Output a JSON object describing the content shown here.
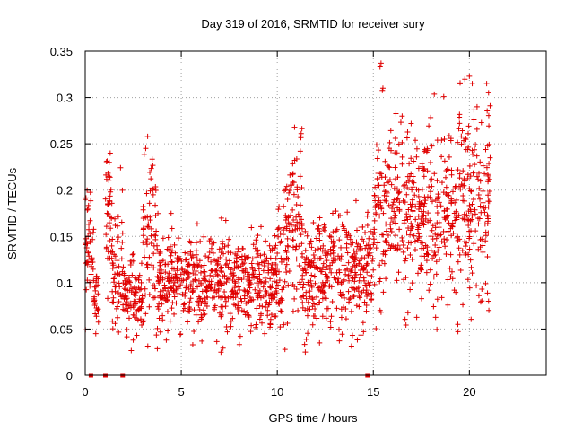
{
  "chart_data": {
    "type": "scatter",
    "title": "Day 319 of 2016, SRMTID for receiver sury",
    "xlabel": "GPS time / hours",
    "ylabel": "SRMTID / TECUs",
    "xlim": [
      0,
      24
    ],
    "ylim": [
      0,
      0.35
    ],
    "xticks": [
      0,
      5,
      10,
      15,
      20
    ],
    "xtick_labels": [
      "0",
      "5",
      "10",
      "15",
      "20"
    ],
    "yticks": [
      0,
      0.05,
      0.1,
      0.15,
      0.2,
      0.25,
      0.3,
      0.35
    ],
    "ytick_labels": [
      "0",
      "0.05",
      "0.1",
      "0.15",
      "0.2",
      "0.25",
      "0.3",
      "0.35"
    ],
    "grid": true,
    "marker": "plus",
    "color": "#e00000",
    "zero_value_hours": [
      0.3,
      1.05,
      1.95,
      14.7
    ],
    "segments": [
      {
        "t0": 0.0,
        "t1": 0.45,
        "mean": 0.14,
        "sd": 0.03
      },
      {
        "t0": 0.45,
        "t1": 0.7,
        "mean": 0.09,
        "sd": 0.015
      },
      {
        "t0": 1.0,
        "t1": 1.4,
        "mean": 0.17,
        "sd": 0.04
      },
      {
        "t0": 1.4,
        "t1": 2.0,
        "mean": 0.11,
        "sd": 0.03
      },
      {
        "t0": 2.0,
        "t1": 3.0,
        "mean": 0.09,
        "sd": 0.02
      },
      {
        "t0": 3.0,
        "t1": 3.8,
        "mean": 0.14,
        "sd": 0.045
      },
      {
        "t0": 3.8,
        "t1": 10.0,
        "mean": 0.1,
        "sd": 0.025
      },
      {
        "t0": 10.0,
        "t1": 10.6,
        "mean": 0.13,
        "sd": 0.04
      },
      {
        "t0": 10.6,
        "t1": 11.3,
        "mean": 0.17,
        "sd": 0.045
      },
      {
        "t0": 11.3,
        "t1": 15.0,
        "mean": 0.11,
        "sd": 0.03
      },
      {
        "t0": 15.0,
        "t1": 16.0,
        "mean": 0.17,
        "sd": 0.05
      },
      {
        "t0": 16.0,
        "t1": 19.0,
        "mean": 0.17,
        "sd": 0.045
      },
      {
        "t0": 19.0,
        "t1": 21.1,
        "mean": 0.18,
        "sd": 0.05
      }
    ],
    "outliers": [
      {
        "x": 15.35,
        "y": 0.333
      },
      {
        "x": 15.5,
        "y": 0.31
      },
      {
        "x": 20.0,
        "y": 0.323
      },
      {
        "x": 20.15,
        "y": 0.315
      },
      {
        "x": 20.9,
        "y": 0.315
      },
      {
        "x": 21.0,
        "y": 0.305
      },
      {
        "x": 20.4,
        "y": 0.29
      },
      {
        "x": 3.25,
        "y": 0.258
      },
      {
        "x": 10.9,
        "y": 0.268
      },
      {
        "x": 1.3,
        "y": 0.24
      },
      {
        "x": 1.25,
        "y": 0.23
      },
      {
        "x": 11.2,
        "y": 0.242
      },
      {
        "x": 0.1,
        "y": 0.2
      },
      {
        "x": 18.7,
        "y": 0.255
      },
      {
        "x": 16.5,
        "y": 0.28
      },
      {
        "x": 10.4,
        "y": 0.028
      },
      {
        "x": 0.55,
        "y": 0.045
      },
      {
        "x": 2.5,
        "y": 0.038
      },
      {
        "x": 5.6,
        "y": 0.033
      },
      {
        "x": 12.2,
        "y": 0.035
      },
      {
        "x": 19.4,
        "y": 0.055
      },
      {
        "x": 21.0,
        "y": 0.08
      }
    ]
  }
}
